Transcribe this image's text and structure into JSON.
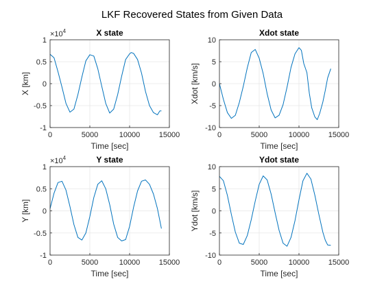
{
  "figure": {
    "title": "LKF Recovered States from Given Data",
    "line_color": "#0072BD",
    "grid_color": "#e6e6e6",
    "axis_color": "#262626"
  },
  "chart_data": [
    {
      "type": "line",
      "title": "X state",
      "xlabel": "Time [sec]",
      "ylabel": "X [km]",
      "exponent_label": "×10",
      "exponent_power": "4",
      "xlim": [
        0,
        15000
      ],
      "ylim": [
        -1,
        1
      ],
      "xticks": [
        "0",
        "5000",
        "10000",
        "15000"
      ],
      "yticks": [
        "-1",
        "-0.5",
        "0",
        "0.5",
        "1"
      ],
      "grid": true,
      "series": [
        {
          "x": [
            0,
            500,
            1000,
            1500,
            2000,
            2500,
            3000,
            3500,
            4000,
            4500,
            5000,
            5500,
            6000,
            6500,
            7000,
            7500,
            8000,
            8500,
            9000,
            9500,
            10000,
            10200,
            10500,
            11000,
            11500,
            12000,
            12500,
            13000,
            13500,
            13800,
            14000
          ],
          "y": [
            0.67,
            0.59,
            0.27,
            -0.08,
            -0.45,
            -0.65,
            -0.58,
            -0.25,
            0.15,
            0.52,
            0.66,
            0.63,
            0.34,
            -0.06,
            -0.45,
            -0.67,
            -0.58,
            -0.25,
            0.17,
            0.55,
            0.68,
            0.71,
            0.69,
            0.55,
            0.24,
            -0.18,
            -0.5,
            -0.66,
            -0.71,
            -0.62,
            -0.62
          ]
        }
      ]
    },
    {
      "type": "line",
      "title": "Xdot state",
      "xlabel": "Time [sec]",
      "ylabel": "Xdot [km/s]",
      "xlim": [
        0,
        15000
      ],
      "ylim": [
        -10,
        10
      ],
      "xticks": [
        "0",
        "5000",
        "10000",
        "15000"
      ],
      "yticks": [
        "-10",
        "-5",
        "0",
        "5",
        "10"
      ],
      "grid": true,
      "series": [
        {
          "x": [
            0,
            500,
            1000,
            1500,
            2000,
            2500,
            3000,
            3500,
            4000,
            4500,
            5000,
            5500,
            6000,
            6500,
            7000,
            7500,
            8000,
            8500,
            9000,
            9500,
            10000,
            10300,
            10600,
            11000,
            11300,
            11600,
            12000,
            12300,
            12600,
            13000,
            13300,
            13600,
            14000
          ],
          "y": [
            0,
            -3.6,
            -6.6,
            -7.9,
            -7.2,
            -4.3,
            -0.6,
            3.6,
            7.1,
            7.8,
            5.8,
            2.3,
            -2.3,
            -6.0,
            -7.8,
            -7.2,
            -4.8,
            -0.8,
            3.7,
            6.8,
            8.2,
            7.6,
            4.6,
            2.5,
            -2.2,
            -5.5,
            -7.6,
            -8.2,
            -6.8,
            -4.2,
            -1.6,
            1.3,
            3.4
          ]
        }
      ]
    },
    {
      "type": "line",
      "title": "Y state",
      "xlabel": "Time [sec]",
      "ylabel": "Y [km]",
      "exponent_label": "×10",
      "exponent_power": "4",
      "xlim": [
        0,
        15000
      ],
      "ylim": [
        -1,
        1
      ],
      "xticks": [
        "0",
        "5000",
        "10000",
        "15000"
      ],
      "yticks": [
        "-1",
        "-0.5",
        "0",
        "0.5",
        "1"
      ],
      "grid": true,
      "series": [
        {
          "x": [
            0,
            500,
            1000,
            1500,
            2000,
            2500,
            3000,
            3500,
            4000,
            4500,
            5000,
            5500,
            6000,
            6500,
            7000,
            7500,
            8000,
            8500,
            9000,
            9500,
            10000,
            10500,
            11000,
            11500,
            12000,
            12500,
            13000,
            13500,
            14000
          ],
          "y": [
            0.05,
            0.4,
            0.64,
            0.67,
            0.47,
            0.1,
            -0.31,
            -0.6,
            -0.66,
            -0.5,
            -0.13,
            0.3,
            0.6,
            0.68,
            0.5,
            0.14,
            -0.3,
            -0.6,
            -0.68,
            -0.65,
            -0.35,
            0.08,
            0.45,
            0.67,
            0.7,
            0.6,
            0.38,
            0.05,
            -0.4
          ]
        }
      ]
    },
    {
      "type": "line",
      "title": "Ydot state",
      "xlabel": "Time [sec]",
      "ylabel": "Ydot [km/s]",
      "xlim": [
        0,
        15000
      ],
      "ylim": [
        -10,
        10
      ],
      "xticks": [
        "0",
        "5000",
        "10000",
        "15000"
      ],
      "yticks": [
        "-10",
        "-5",
        "0",
        "5",
        "10"
      ],
      "grid": true,
      "series": [
        {
          "x": [
            0,
            500,
            1000,
            1500,
            2000,
            2500,
            3000,
            3500,
            4000,
            4500,
            5000,
            5500,
            6000,
            6500,
            7000,
            7500,
            8000,
            8500,
            9000,
            9500,
            10000,
            10500,
            11000,
            11500,
            12000,
            12500,
            13000,
            13300,
            13600,
            14000
          ],
          "y": [
            7.8,
            6.8,
            3.5,
            -0.8,
            -4.8,
            -7.3,
            -7.6,
            -5.6,
            -2.0,
            2.2,
            6.0,
            7.9,
            7.0,
            3.8,
            -0.4,
            -4.4,
            -7.3,
            -8.0,
            -6.0,
            -2.2,
            2.5,
            6.8,
            8.5,
            7.2,
            3.5,
            -0.8,
            -4.8,
            -6.6,
            -7.7,
            -7.8
          ]
        }
      ]
    }
  ]
}
